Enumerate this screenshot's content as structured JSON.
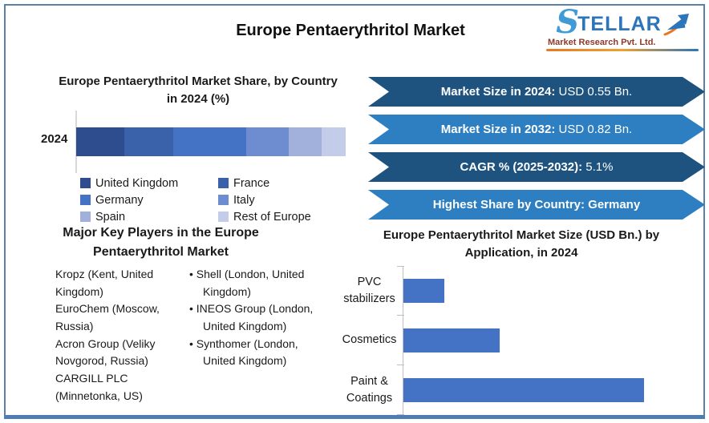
{
  "page": {
    "title": "Europe Pentaerythritol Market"
  },
  "logo": {
    "brand_initial": "S",
    "brand_rest": "TELLAR",
    "subtitle": "Market Research Pvt. Ltd.",
    "brand_color": "#2d74b9",
    "accent_color": "#e87722"
  },
  "chart_data": [
    {
      "id": "country_share",
      "type": "bar",
      "variant": "horizontal-stacked",
      "title": "Europe Pentaerythritol Market Share, by Country in 2024 (%)",
      "categories": [
        "2024"
      ],
      "series": [
        {
          "name": "United Kingdom",
          "value": 18,
          "color": "#2e4d8e"
        },
        {
          "name": "France",
          "value": 18,
          "color": "#3a62ab"
        },
        {
          "name": "Germany",
          "value": 27,
          "color": "#4472c4"
        },
        {
          "name": "Italy",
          "value": 16,
          "color": "#6e8cd0"
        },
        {
          "name": "Spain",
          "value": 12,
          "color": "#a2b0dc"
        },
        {
          "name": "Rest of Europe",
          "value": 9,
          "color": "#c3cde9"
        }
      ],
      "xlim": [
        0,
        100
      ],
      "legend_position": "bottom",
      "grid": false
    },
    {
      "id": "application_size",
      "type": "bar",
      "variant": "horizontal",
      "title": "Europe Pentaerythritol Market Size (USD Bn.) by Application, in 2024",
      "categories": [
        "PVC stabilizers",
        "Cosmetics",
        "Paint & Coatings"
      ],
      "values": [
        0.06,
        0.14,
        0.35
      ],
      "bar_color": "#4472c4",
      "grid": false,
      "legend_position": "none"
    }
  ],
  "banners": [
    {
      "label": "Market Size in 2024:",
      "value": " USD 0.55 Bn.",
      "color": "#1e537f"
    },
    {
      "label": "Market Size in 2032:",
      "value": " USD 0.82 Bn.",
      "color": "#2e7fc1"
    },
    {
      "label": "CAGR % (2025-2032):",
      "value": " 5.1%",
      "color": "#1e537f"
    },
    {
      "label": "Highest Share by Country: Germany",
      "value": "",
      "color": "#2e7fc1"
    }
  ],
  "key_players": {
    "title": "Major Key Players in the Europe Pentaerythritol Market",
    "column1": [
      "Kropz (Kent, United Kingdom)",
      "EuroChem (Moscow, Russia)",
      "Acron Group (Veliky Novgorod, Russia)",
      "CARGILL PLC (Minnetonka, US)"
    ],
    "column2": [
      "Shell (London, United Kingdom)",
      "INEOS Group (London, United Kingdom)",
      "Synthomer (London, United Kingdom)"
    ]
  }
}
